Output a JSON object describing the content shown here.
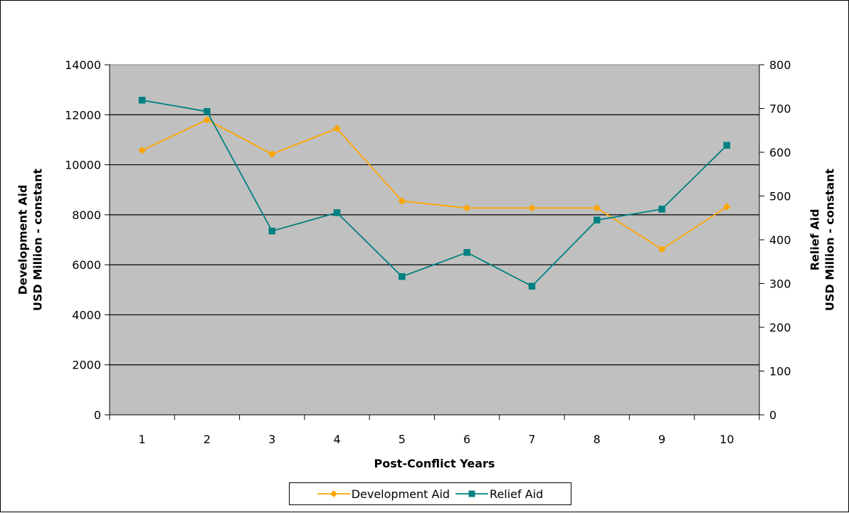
{
  "chart_data": {
    "type": "line",
    "title": "",
    "xlabel": "Post-Conflict Years",
    "ylabel_left": [
      "Development Aid",
      "USD Million - constant"
    ],
    "ylabel_right": [
      "Relief Aid",
      "USD Million - constant"
    ],
    "categories": [
      "1",
      "2",
      "3",
      "4",
      "5",
      "6",
      "7",
      "8",
      "9",
      "10"
    ],
    "ylim_left": [
      0,
      14000
    ],
    "yticks_left": [
      "0",
      "2000",
      "4000",
      "6000",
      "8000",
      "10000",
      "12000",
      "14000"
    ],
    "ylim_right": [
      0,
      800
    ],
    "yticks_right": [
      "0",
      "100",
      "200",
      "300",
      "400",
      "500",
      "600",
      "700",
      "800"
    ],
    "grid": "horizontal",
    "legend_position": "bottom",
    "series": [
      {
        "name": "Development Aid",
        "axis": "left",
        "color": "#FFA500",
        "marker": "diamond",
        "values": [
          10580,
          11800,
          10430,
          11450,
          8550,
          8270,
          8270,
          8270,
          6620,
          8320
        ]
      },
      {
        "name": "Relief Aid",
        "axis": "right",
        "color": "#008080",
        "marker": "square",
        "values": [
          719,
          693,
          420,
          462,
          316,
          371,
          294,
          445,
          470,
          616
        ]
      }
    ]
  }
}
